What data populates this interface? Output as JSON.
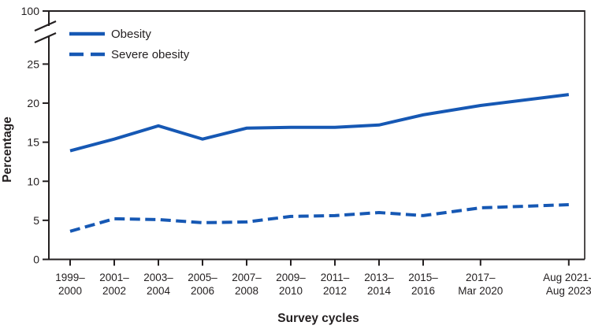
{
  "chart_data": {
    "type": "line",
    "title": "",
    "xlabel": "Survey cycles",
    "ylabel": "Percentage",
    "line_color": "#1658b4",
    "axis_color": "#231f20",
    "grid": false,
    "legend_position": "top-left",
    "y_ticks": [
      "0",
      "5",
      "10",
      "15",
      "20",
      "25"
    ],
    "y_tick_values": [
      0,
      5,
      10,
      15,
      20,
      25
    ],
    "y_axis_break": {
      "upper_label": "100"
    },
    "ylim_display": [
      0,
      25
    ],
    "categories": [
      [
        "1999–",
        "2000"
      ],
      [
        "2001–",
        "2002"
      ],
      [
        "2003–",
        "2004"
      ],
      [
        "2005–",
        "2006"
      ],
      [
        "2007–",
        "2008"
      ],
      [
        "2009–",
        "2010"
      ],
      [
        "2011–",
        "2012"
      ],
      [
        "2013–",
        "2014"
      ],
      [
        "2015–",
        "2016"
      ],
      [
        "2017–",
        "Mar 2020"
      ],
      [
        "Aug 2021–",
        "Aug 2023"
      ]
    ],
    "x_midpoint_years": [
      2000,
      2002,
      2004,
      2006,
      2008,
      2010,
      2012,
      2014,
      2016,
      2018.6,
      2022.6
    ],
    "series": [
      {
        "name": "Obesity",
        "style": "solid",
        "values": [
          13.9,
          15.4,
          17.1,
          15.4,
          16.8,
          16.9,
          16.9,
          17.2,
          18.5,
          19.7,
          21.1
        ]
      },
      {
        "name": "Severe obesity",
        "style": "dashed",
        "values": [
          3.6,
          5.2,
          5.1,
          4.7,
          4.8,
          5.5,
          5.6,
          6.0,
          5.6,
          6.6,
          7.0
        ]
      }
    ]
  }
}
